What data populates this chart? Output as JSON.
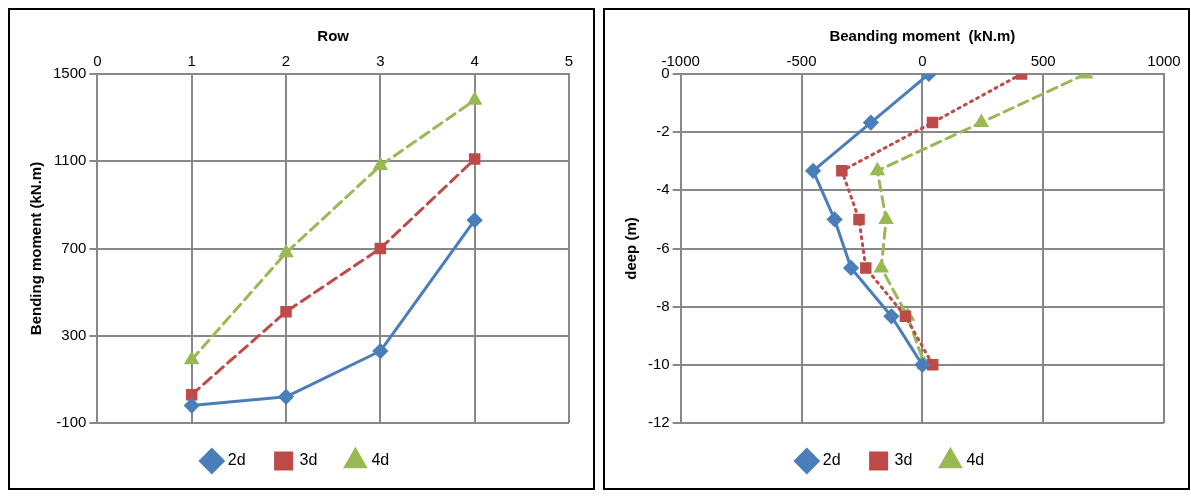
{
  "chart_data": [
    {
      "type": "line",
      "xlabel": "Row",
      "ylabel": "Bending moment (kN.m)",
      "x": [
        1,
        2,
        3,
        4
      ],
      "xlim": [
        0,
        5
      ],
      "xticks": [
        0,
        1,
        2,
        3,
        4,
        5
      ],
      "ylim": [
        -100,
        1500
      ],
      "yticks": [
        -100,
        300,
        700,
        1100,
        1500
      ],
      "grid": true,
      "legend": "bottom",
      "series": [
        {
          "name": "2d",
          "color": "#4a7ebb",
          "values": [
            -20,
            20,
            230,
            830
          ],
          "marker": "diamond",
          "line_style": "solid"
        },
        {
          "name": "3d",
          "color": "#be4b48",
          "values": [
            30,
            410,
            700,
            1110
          ],
          "marker": "square",
          "line_style": "dashed"
        },
        {
          "name": "4d",
          "color": "#98b954",
          "values": [
            190,
            680,
            1080,
            1380
          ],
          "marker": "triangle",
          "line_style": "dashed"
        }
      ]
    },
    {
      "type": "line",
      "xlabel": "Beanding moment  (kN.m)",
      "ylabel": "deep (m)",
      "xlim": [
        -1000,
        1000
      ],
      "xticks": [
        -1000,
        -500,
        0,
        500,
        1000
      ],
      "ylim": [
        -12,
        0
      ],
      "yticks": [
        0,
        -2,
        -4,
        -6,
        -8,
        -10,
        -12
      ],
      "grid": true,
      "legend": "bottom",
      "series": [
        {
          "name": "2d",
          "color": "#4a7ebb",
          "x": [
            27,
            -213,
            -452,
            -363,
            -295,
            -128,
            0
          ],
          "values": [
            0,
            -1.67,
            -3.33,
            -5,
            -6.67,
            -8.33,
            -10
          ],
          "marker": "diamond",
          "line_style": "solid"
        },
        {
          "name": "3d",
          "color": "#be4b48",
          "x": [
            410,
            42,
            -333,
            -262,
            -234,
            -70,
            43
          ],
          "values": [
            0,
            -1.67,
            -3.33,
            -5,
            -6.67,
            -8.33,
            -10
          ],
          "marker": "square",
          "line_style": "dotted"
        },
        {
          "name": "4d",
          "color": "#98b954",
          "x": [
            676,
            244,
            -186,
            -150,
            -170,
            -61,
            9
          ],
          "values": [
            0,
            -1.67,
            -3.33,
            -5,
            -6.67,
            -8.33,
            -10
          ],
          "marker": "triangle",
          "line_style": "dashed"
        }
      ]
    }
  ]
}
